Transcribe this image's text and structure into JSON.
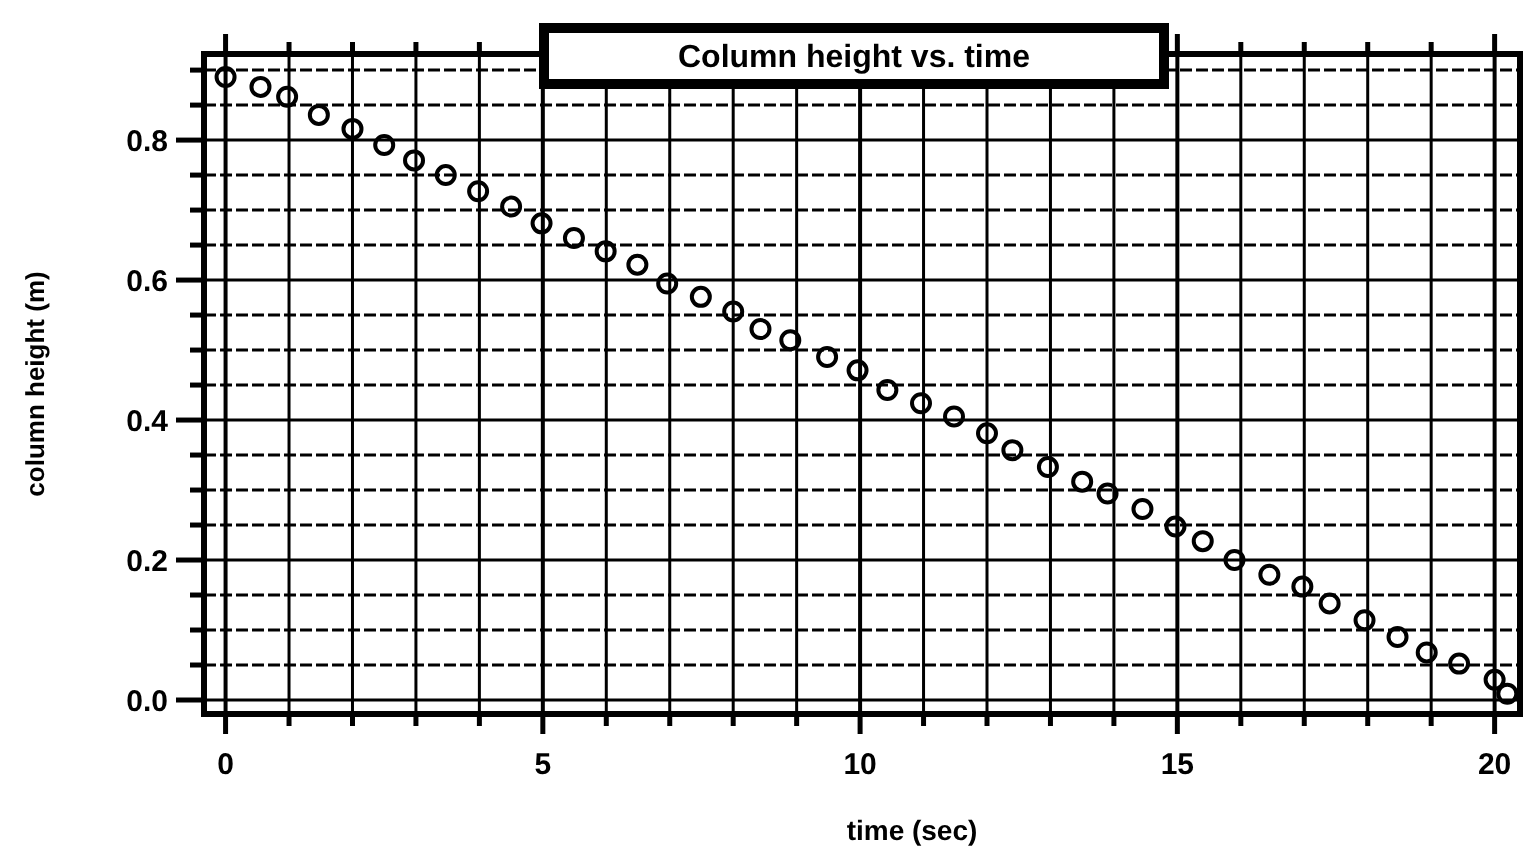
{
  "chart_data": {
    "type": "scatter",
    "title": "Column height vs. time",
    "xlabel": "time (sec)",
    "ylabel": "column height (m)",
    "x": [
      0,
      0.55,
      0.97,
      1.47,
      2.0,
      2.5,
      2.97,
      3.47,
      3.98,
      4.5,
      4.98,
      5.49,
      5.99,
      6.49,
      6.96,
      7.49,
      8.0,
      8.43,
      8.9,
      9.48,
      9.96,
      10.43,
      10.96,
      11.48,
      12.0,
      12.4,
      12.96,
      13.5,
      13.9,
      14.45,
      14.97,
      15.4,
      15.9,
      16.45,
      16.97,
      17.4,
      17.95,
      18.47,
      18.93,
      19.44,
      20.0,
      20.2
    ],
    "series": [
      {
        "color": "#000000",
        "values": [
          0.89,
          0.876,
          0.862,
          0.836,
          0.816,
          0.793,
          0.771,
          0.75,
          0.727,
          0.705,
          0.681,
          0.66,
          0.641,
          0.622,
          0.595,
          0.576,
          0.555,
          0.53,
          0.514,
          0.49,
          0.471,
          0.443,
          0.424,
          0.405,
          0.381,
          0.357,
          0.333,
          0.312,
          0.295,
          0.273,
          0.248,
          0.227,
          0.2,
          0.179,
          0.162,
          0.138,
          0.114,
          0.09,
          0.068,
          0.052,
          0.029,
          0.009
        ]
      }
    ],
    "xlim": [
      -0.34,
      20.4
    ],
    "ylim": [
      -0.02,
      0.923
    ],
    "xticks": [
      0,
      {
        "value": 1,
        "label": null
      },
      {
        "value": 2,
        "label": null
      },
      {
        "value": 3,
        "label": null
      },
      {
        "value": 4,
        "label": null
      },
      5,
      {
        "value": 6,
        "label": null
      },
      {
        "value": 7,
        "label": null
      },
      {
        "value": 8,
        "label": null
      },
      {
        "value": 9,
        "label": null
      },
      10,
      {
        "value": 11,
        "label": null
      },
      {
        "value": 12,
        "label": null
      },
      {
        "value": 13,
        "label": null
      },
      {
        "value": 14,
        "label": null
      },
      15,
      {
        "value": 16,
        "label": null
      },
      {
        "value": 17,
        "label": null
      },
      {
        "value": 18,
        "label": null
      },
      {
        "value": 19,
        "label": null
      },
      20
    ],
    "yticks": [
      {
        "value": 0,
        "label": "0.0"
      },
      {
        "value": 0.05,
        "label": null
      },
      {
        "value": 0.1,
        "label": null
      },
      {
        "value": 0.15,
        "label": null
      },
      {
        "value": 0.2,
        "label": "0.2"
      },
      {
        "value": 0.25,
        "label": null
      },
      {
        "value": 0.3,
        "label": null
      },
      {
        "value": 0.35,
        "label": null
      },
      {
        "value": 0.4,
        "label": "0.4"
      },
      {
        "value": 0.45,
        "label": null
      },
      {
        "value": 0.5,
        "label": null
      },
      {
        "value": 0.55,
        "label": null
      },
      {
        "value": 0.6,
        "label": "0.6"
      },
      {
        "value": 0.65,
        "label": null
      },
      {
        "value": 0.7,
        "label": null
      },
      {
        "value": 0.75,
        "label": null
      },
      {
        "value": 0.8,
        "label": "0.8"
      },
      {
        "value": 0.85,
        "label": null
      },
      {
        "value": 0.9,
        "label": null
      }
    ],
    "grid": true,
    "marker": "circle"
  }
}
